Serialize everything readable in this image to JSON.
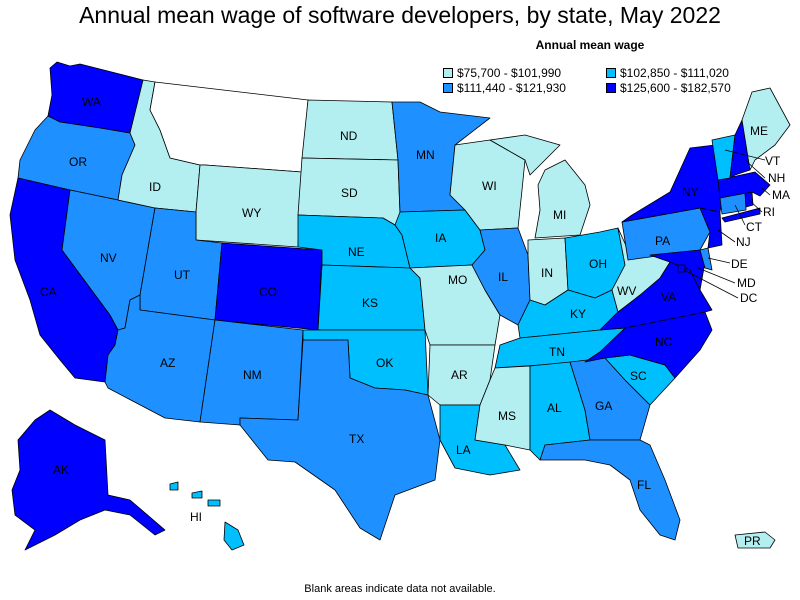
{
  "title": "Annual mean wage of software developers, by state, May 2022",
  "legend": {
    "title": "Annual mean wage",
    "items": [
      {
        "label": "$75,700 - $101,990",
        "color": "#b3eef0"
      },
      {
        "label": "$102,850 - $111,020",
        "color": "#00bfff"
      },
      {
        "label": "$111,440 - $121,930",
        "color": "#1e90ff"
      },
      {
        "label": "$125,600 - $182,570",
        "color": "#0000ff"
      }
    ]
  },
  "no_data_color": "#ffffff",
  "footnote": "Blank areas indicate data not available.",
  "states": {
    "WA": {
      "label": "WA",
      "class": 3
    },
    "OR": {
      "label": "OR",
      "class": 2
    },
    "CA": {
      "label": "CA",
      "class": 3
    },
    "NV": {
      "label": "NV",
      "class": 2
    },
    "ID": {
      "label": "ID",
      "class": 0
    },
    "MT": {
      "label": "",
      "class": null
    },
    "WY": {
      "label": "WY",
      "class": 0
    },
    "UT": {
      "label": "UT",
      "class": 2
    },
    "AZ": {
      "label": "AZ",
      "class": 2
    },
    "CO": {
      "label": "CO",
      "class": 3
    },
    "NM": {
      "label": "NM",
      "class": 2
    },
    "ND": {
      "label": "ND",
      "class": 0
    },
    "SD": {
      "label": "SD",
      "class": 0
    },
    "NE": {
      "label": "NE",
      "class": 1
    },
    "KS": {
      "label": "KS",
      "class": 1
    },
    "OK": {
      "label": "OK",
      "class": 1
    },
    "TX": {
      "label": "TX",
      "class": 2
    },
    "MN": {
      "label": "MN",
      "class": 2
    },
    "IA": {
      "label": "IA",
      "class": 1
    },
    "MO": {
      "label": "MO",
      "class": 0
    },
    "AR": {
      "label": "AR",
      "class": 0
    },
    "LA": {
      "label": "LA",
      "class": 1
    },
    "WI": {
      "label": "WI",
      "class": 0
    },
    "IL": {
      "label": "IL",
      "class": 2
    },
    "MI": {
      "label": "MI",
      "class": 0
    },
    "IN": {
      "label": "IN",
      "class": 0
    },
    "OH": {
      "label": "OH",
      "class": 1
    },
    "KY": {
      "label": "KY",
      "class": 1
    },
    "TN": {
      "label": "TN",
      "class": 1
    },
    "MS": {
      "label": "MS",
      "class": 0
    },
    "AL": {
      "label": "AL",
      "class": 1
    },
    "GA": {
      "label": "GA",
      "class": 2
    },
    "FL": {
      "label": "FL",
      "class": 2
    },
    "SC": {
      "label": "SC",
      "class": 1
    },
    "NC": {
      "label": "NC",
      "class": 3
    },
    "VA": {
      "label": "VA",
      "class": 3
    },
    "WV": {
      "label": "WV",
      "class": 0
    },
    "PA": {
      "label": "PA",
      "class": 2
    },
    "NY": {
      "label": "NY",
      "class": 3
    },
    "VT": {
      "label": "VT",
      "class": 1
    },
    "NH": {
      "label": "NH",
      "class": 3
    },
    "ME": {
      "label": "ME",
      "class": 0
    },
    "MA": {
      "label": "MA",
      "class": 3
    },
    "RI": {
      "label": "RI",
      "class": 3
    },
    "CT": {
      "label": "CT",
      "class": 2
    },
    "NJ": {
      "label": "NJ",
      "class": 3
    },
    "DE": {
      "label": "DE",
      "class": 2
    },
    "MD": {
      "label": "MD",
      "class": 3
    },
    "DC": {
      "label": "DC",
      "class": 3
    },
    "AK": {
      "label": "AK",
      "class": 3
    },
    "HI": {
      "label": "HI",
      "class": 1
    },
    "PR": {
      "label": "PR",
      "class": 0
    }
  }
}
